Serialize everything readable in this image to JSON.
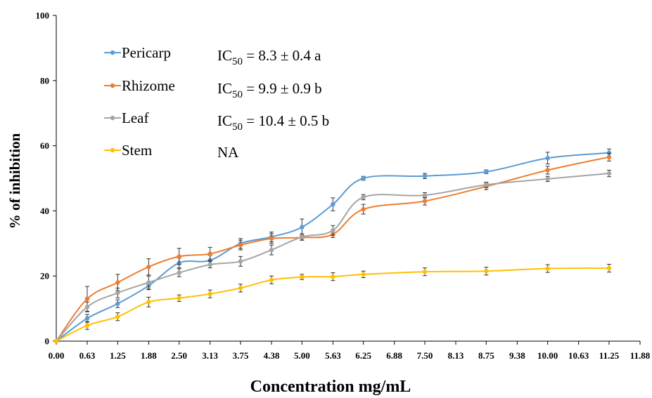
{
  "chart_data": {
    "type": "line",
    "xlabel": "Concentration mg/mL",
    "ylabel": "% of inhibition",
    "x_ticks": [
      "0.00",
      "0.63",
      "1.25",
      "1.88",
      "2.50",
      "3.13",
      "3.75",
      "4.38",
      "5.00",
      "5.63",
      "6.25",
      "6.88",
      "7.50",
      "8.13",
      "8.75",
      "9.38",
      "10.00",
      "10.63",
      "11.25",
      "11.88"
    ],
    "y_ticks": [
      "0",
      "20",
      "40",
      "60",
      "80",
      "100"
    ],
    "ylim": [
      0,
      100
    ],
    "xlim": [
      0,
      11.88
    ],
    "grid": false,
    "legend_position": "top-left",
    "series": [
      {
        "name": "Pericarp",
        "color": "#5B9BD5",
        "x": [
          0.0,
          0.63,
          1.25,
          1.88,
          2.5,
          3.13,
          3.75,
          4.38,
          5.0,
          5.63,
          6.25,
          7.5,
          8.75,
          10.0,
          11.25
        ],
        "values": [
          0,
          7.0,
          11.5,
          17.0,
          24.0,
          24.8,
          30.0,
          32.0,
          35.0,
          42.0,
          50.0,
          50.7,
          52.0,
          56.2,
          57.8
        ],
        "errors": [
          0,
          1.2,
          1.2,
          1.2,
          1.5,
          1.5,
          1.5,
          1.5,
          2.5,
          2.0,
          0.6,
          0.8,
          0.6,
          1.8,
          1.2
        ],
        "annotation": {
          "prefix": "IC",
          "sub": "50",
          "rest": " = 8.3 ± 0.4 a"
        }
      },
      {
        "name": "Rhizome",
        "color": "#ED7D31",
        "x": [
          0.0,
          0.63,
          1.25,
          1.88,
          2.5,
          3.13,
          3.75,
          4.38,
          5.0,
          5.63,
          6.25,
          7.5,
          8.75,
          10.0,
          11.25
        ],
        "values": [
          0,
          13.0,
          18.0,
          22.8,
          26.0,
          26.8,
          29.5,
          31.5,
          31.8,
          32.8,
          40.5,
          43.0,
          47.5,
          52.5,
          56.5
        ],
        "errors": [
          0,
          3.8,
          2.5,
          2.5,
          2.5,
          2.0,
          1.5,
          1.5,
          0.8,
          1.0,
          1.5,
          1.2,
          1.0,
          1.2,
          1.2
        ],
        "annotation": {
          "prefix": "IC",
          "sub": "50",
          "rest": " = 9.9 ± 0.9 b"
        }
      },
      {
        "name": "Leaf",
        "color": "#A5A5A5",
        "x": [
          0.0,
          0.63,
          1.25,
          1.88,
          2.5,
          3.13,
          3.75,
          4.38,
          5.0,
          5.63,
          6.25,
          7.5,
          8.75,
          10.0,
          11.25
        ],
        "values": [
          0,
          10.5,
          14.8,
          18.0,
          21.0,
          23.5,
          24.5,
          28.0,
          32.0,
          34.0,
          44.2,
          44.8,
          48.0,
          49.8,
          51.5
        ],
        "errors": [
          0,
          1.5,
          1.5,
          2.0,
          1.2,
          1.0,
          1.5,
          1.5,
          1.0,
          1.5,
          0.8,
          0.8,
          0.8,
          0.8,
          1.0
        ],
        "annotation": {
          "prefix": "IC",
          "sub": "50",
          "rest": " = 10.4 ± 0.5 b"
        }
      },
      {
        "name": "Stem",
        "color": "#FFC000",
        "x": [
          0.0,
          0.63,
          1.25,
          1.88,
          2.5,
          3.13,
          3.75,
          4.38,
          5.0,
          5.63,
          6.25,
          7.5,
          8.75,
          10.0,
          11.25
        ],
        "values": [
          0,
          4.8,
          7.5,
          12.0,
          13.2,
          14.5,
          16.3,
          18.8,
          19.7,
          19.8,
          20.5,
          21.3,
          21.5,
          22.3,
          22.4
        ],
        "errors": [
          0,
          1.2,
          1.2,
          1.5,
          1.0,
          1.2,
          1.2,
          1.2,
          0.8,
          1.2,
          1.0,
          1.2,
          1.2,
          1.2,
          1.2
        ],
        "annotation": {
          "prefix": "",
          "sub": "",
          "rest": "NA"
        }
      }
    ]
  }
}
